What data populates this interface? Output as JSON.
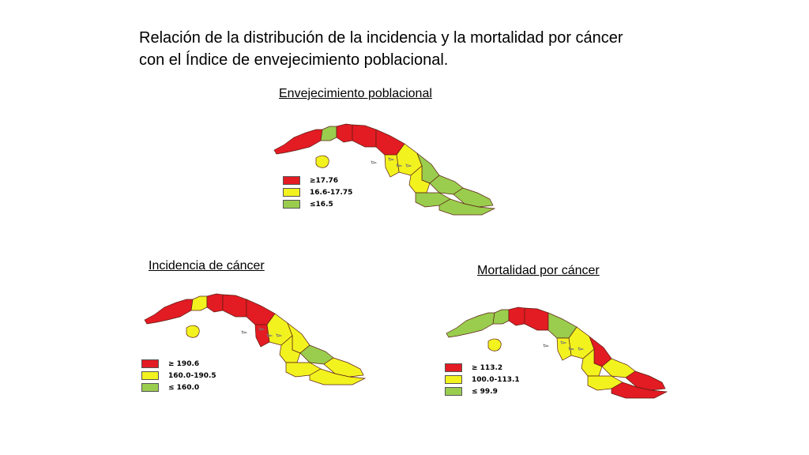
{
  "title": {
    "line1": "Relación de la distribución de la incidencia y la mortalidad por cáncer",
    "line2": "con el Índice de envejecimiento poblacional."
  },
  "colors": {
    "red": "#e31b23",
    "yellow": "#f2f21f",
    "green": "#9acd4e",
    "border": "#5a1e12"
  },
  "maps": [
    {
      "label": "Envejecimiento poblacional",
      "legend": [
        {
          "text": "≥17.76",
          "color": "red"
        },
        {
          "text": "16.6-17.75",
          "color": "yellow"
        },
        {
          "text": "≤16.5",
          "color": "green"
        }
      ],
      "regions": [
        "red",
        "green",
        "red",
        "red",
        "red",
        "yellow",
        "yellow",
        "green",
        "yellow",
        "green",
        "green",
        "green",
        "green"
      ]
    },
    {
      "label": "Incidencia de cáncer",
      "legend": [
        {
          "text": "≥ 190.6",
          "color": "red"
        },
        {
          "text": "160.0-190.5",
          "color": "yellow"
        },
        {
          "text": "≤ 160.0",
          "color": "green"
        }
      ],
      "regions": [
        "red",
        "yellow",
        "red",
        "red",
        "red",
        "yellow",
        "red",
        "yellow",
        "yellow",
        "green",
        "yellow",
        "yellow",
        "yellow"
      ]
    },
    {
      "label": "Mortalidad por cáncer",
      "legend": [
        {
          "text": "≥ 113.2",
          "color": "red"
        },
        {
          "text": "100.0-113.1",
          "color": "yellow"
        },
        {
          "text": "≤ 99.9",
          "color": "green"
        }
      ],
      "regions": [
        "green",
        "green",
        "red",
        "red",
        "green",
        "yellow",
        "yellow",
        "red",
        "yellow",
        "yellow",
        "red",
        "yellow",
        "red"
      ]
    }
  ]
}
